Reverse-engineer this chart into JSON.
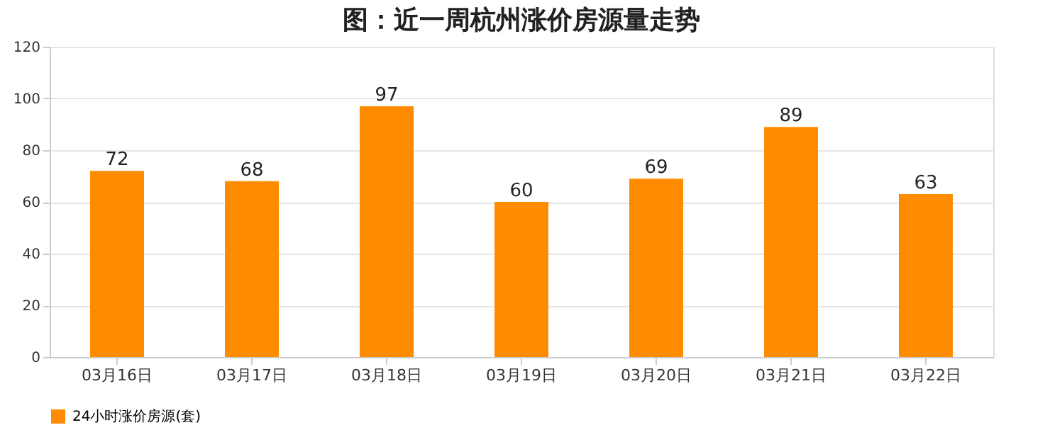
{
  "chart_data": {
    "type": "bar",
    "title": "图：近一周杭州涨价房源量走势",
    "categories": [
      "03月16日",
      "03月17日",
      "03月18日",
      "03月19日",
      "03月20日",
      "03月21日",
      "03月22日"
    ],
    "series": [
      {
        "name": "24小时涨价房源(套)",
        "color": "#ff8c00",
        "values": [
          72,
          68,
          97,
          60,
          69,
          89,
          63
        ]
      }
    ],
    "ylim": [
      0,
      120
    ],
    "yticks": [
      0,
      20,
      40,
      60,
      80,
      100,
      120
    ],
    "grid": "y",
    "legend": "bottom",
    "data_labels": true
  }
}
